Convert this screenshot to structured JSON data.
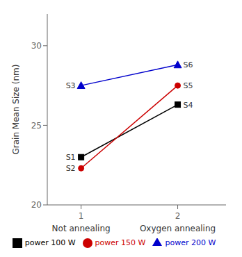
{
  "chart_data": {
    "type": "line",
    "ylabel": "Grain Mean Size (nm)",
    "x": [
      1,
      2
    ],
    "xlim": [
      0.65,
      2.5
    ],
    "xticks": [
      1,
      2
    ],
    "ylim": [
      20,
      32
    ],
    "yticks": [
      20,
      25,
      30
    ],
    "legend": "bottom",
    "series": [
      {
        "name": "power 100 W",
        "color": "#000000",
        "marker": "square",
        "values": [
          23.0,
          26.3
        ]
      },
      {
        "name": "power 150 W",
        "color": "#cc0000",
        "marker": "circle",
        "values": [
          22.3,
          27.5
        ]
      },
      {
        "name": "power 200 W",
        "color": "#0000cc",
        "marker": "triangle",
        "values": [
          27.5,
          28.8
        ]
      }
    ],
    "annotations": [
      {
        "text": "S1",
        "x": 1,
        "y": 23.0
      },
      {
        "text": "S4",
        "x": 2,
        "y": 26.3
      },
      {
        "text": "S2",
        "x": 1,
        "y": 22.3
      },
      {
        "text": "S5",
        "x": 2,
        "y": 27.5
      },
      {
        "text": "S3",
        "x": 1,
        "y": 27.5
      },
      {
        "text": "S6",
        "x": 2,
        "y": 28.8
      },
      {
        "text": "Not annealing",
        "x": 1
      },
      {
        "text": "Oxygen annealing",
        "x": 2
      }
    ]
  }
}
